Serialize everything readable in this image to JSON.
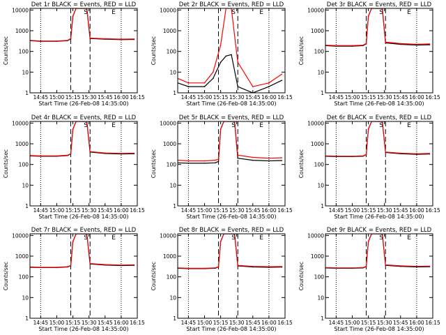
{
  "xlabel": "Start Time (26-Feb-08 14:35:00)",
  "ylabel": "Counts/sec",
  "colors": {
    "events": "#000000",
    "lld": "#ff0000"
  },
  "x_ticks": [
    "14:45",
    "15:00",
    "15:15",
    "15:30",
    "15:45",
    "16:00",
    "16:15"
  ],
  "y_ticks": [
    "1",
    "10",
    "100",
    "1000",
    "10000"
  ],
  "legend_markers": [
    "S",
    "E"
  ],
  "chart_data": [
    {
      "type": "line",
      "title": "Det 1r BLACK = Events, RED = LLD",
      "y_scale": "log",
      "ylim": [
        1,
        12000
      ],
      "x": [
        "14:35",
        "14:45",
        "15:00",
        "15:10",
        "15:13",
        "15:15",
        "15:18",
        "15:25",
        "15:28",
        "15:31",
        "15:45",
        "16:00",
        "16:12"
      ],
      "series": [
        {
          "name": "Events",
          "values": [
            330,
            310,
            310,
            330,
            400,
            5000,
            12000,
            12000,
            12000,
            420,
            390,
            370,
            380
          ]
        },
        {
          "name": "LLD",
          "values": [
            340,
            320,
            320,
            340,
            420,
            5200,
            12000,
            12000,
            12000,
            440,
            410,
            390,
            400
          ]
        }
      ]
    },
    {
      "type": "line",
      "title": "Det 2r BLACK = Events, RED = LLD",
      "y_scale": "log",
      "ylim": [
        1,
        12000
      ],
      "x": [
        "14:35",
        "14:45",
        "15:00",
        "15:08",
        "15:15",
        "15:20",
        "15:25",
        "15:31",
        "15:45",
        "16:00",
        "16:12"
      ],
      "series": [
        {
          "name": "Events",
          "values": [
            3,
            2,
            2,
            5,
            30,
            60,
            70,
            2,
            1,
            2,
            4
          ]
        },
        {
          "name": "LLD",
          "values": [
            5,
            3,
            3,
            10,
            200,
            12000,
            12000,
            30,
            2,
            3,
            8
          ]
        }
      ]
    },
    {
      "type": "line",
      "title": "Det 3r BLACK = Events, RED = LLD",
      "y_scale": "log",
      "ylim": [
        1,
        12000
      ],
      "x": [
        "14:35",
        "14:45",
        "15:00",
        "15:10",
        "15:13",
        "15:15",
        "15:18",
        "15:25",
        "15:28",
        "15:31",
        "15:45",
        "16:00",
        "16:12"
      ],
      "series": [
        {
          "name": "Events",
          "values": [
            190,
            180,
            180,
            190,
            230,
            5000,
            12000,
            12000,
            12000,
            260,
            220,
            200,
            210
          ]
        },
        {
          "name": "LLD",
          "values": [
            200,
            190,
            190,
            200,
            240,
            5200,
            12000,
            12000,
            12000,
            280,
            240,
            220,
            230
          ]
        }
      ]
    },
    {
      "type": "line",
      "title": "Det 4r BLACK = Events, RED = LLD",
      "y_scale": "log",
      "ylim": [
        1,
        12000
      ],
      "x": [
        "14:35",
        "14:45",
        "15:00",
        "15:10",
        "15:13",
        "15:15",
        "15:18",
        "15:25",
        "15:28",
        "15:31",
        "15:45",
        "16:00",
        "16:12"
      ],
      "series": [
        {
          "name": "Events",
          "values": [
            260,
            250,
            250,
            270,
            320,
            5000,
            12000,
            12000,
            12000,
            400,
            340,
            320,
            330
          ]
        },
        {
          "name": "LLD",
          "values": [
            270,
            260,
            260,
            280,
            330,
            5200,
            12000,
            12000,
            12000,
            420,
            360,
            340,
            350
          ]
        }
      ]
    },
    {
      "type": "line",
      "title": "Det 5r BLACK = Events, RED = LLD",
      "y_scale": "log",
      "ylim": [
        1,
        12000
      ],
      "x": [
        "14:35",
        "14:45",
        "15:00",
        "15:10",
        "15:13",
        "15:15",
        "15:18",
        "15:25",
        "15:28",
        "15:31",
        "15:45",
        "16:00",
        "16:12"
      ],
      "series": [
        {
          "name": "Events",
          "values": [
            120,
            115,
            115,
            120,
            140,
            5000,
            12000,
            12000,
            12000,
            200,
            160,
            150,
            155
          ]
        },
        {
          "name": "LLD",
          "values": [
            160,
            150,
            150,
            160,
            180,
            5200,
            12000,
            12000,
            12000,
            280,
            220,
            200,
            210
          ]
        }
      ]
    },
    {
      "type": "line",
      "title": "Det 6r BLACK = Events, RED = LLD",
      "y_scale": "log",
      "ylim": [
        1,
        12000
      ],
      "x": [
        "14:35",
        "14:45",
        "15:00",
        "15:10",
        "15:13",
        "15:15",
        "15:18",
        "15:25",
        "15:28",
        "15:31",
        "15:45",
        "16:00",
        "16:12"
      ],
      "series": [
        {
          "name": "Events",
          "values": [
            250,
            240,
            240,
            250,
            300,
            5000,
            12000,
            12000,
            12000,
            380,
            330,
            310,
            320
          ]
        },
        {
          "name": "LLD",
          "values": [
            260,
            250,
            250,
            260,
            310,
            5200,
            12000,
            12000,
            12000,
            400,
            350,
            330,
            340
          ]
        }
      ]
    },
    {
      "type": "line",
      "title": "Det 7r BLACK = Events, RED = LLD",
      "y_scale": "log",
      "ylim": [
        1,
        12000
      ],
      "x": [
        "14:35",
        "14:45",
        "15:00",
        "15:10",
        "15:13",
        "15:15",
        "15:18",
        "15:25",
        "15:28",
        "15:31",
        "15:45",
        "16:00",
        "16:12"
      ],
      "series": [
        {
          "name": "Events",
          "values": [
            290,
            280,
            280,
            300,
            340,
            5000,
            12000,
            12000,
            12000,
            420,
            370,
            350,
            360
          ]
        },
        {
          "name": "LLD",
          "values": [
            300,
            290,
            290,
            310,
            350,
            5200,
            12000,
            12000,
            12000,
            440,
            390,
            370,
            380
          ]
        }
      ]
    },
    {
      "type": "line",
      "title": "Det 8r BLACK = Events, RED = LLD",
      "y_scale": "log",
      "ylim": [
        1,
        12000
      ],
      "x": [
        "14:35",
        "14:45",
        "15:00",
        "15:10",
        "15:13",
        "15:15",
        "15:18",
        "15:25",
        "15:28",
        "15:31",
        "15:45",
        "16:00",
        "16:12"
      ],
      "series": [
        {
          "name": "Events",
          "values": [
            260,
            250,
            250,
            260,
            300,
            5000,
            12000,
            12000,
            12000,
            340,
            300,
            290,
            295
          ]
        },
        {
          "name": "LLD",
          "values": [
            270,
            260,
            260,
            270,
            310,
            5200,
            12000,
            12000,
            12000,
            360,
            320,
            310,
            315
          ]
        }
      ]
    },
    {
      "type": "line",
      "title": "Det 9r BLACK = Events, RED = LLD",
      "y_scale": "log",
      "ylim": [
        1,
        12000
      ],
      "x": [
        "14:35",
        "14:45",
        "15:00",
        "15:10",
        "15:13",
        "15:15",
        "15:18",
        "15:25",
        "15:28",
        "15:31",
        "15:45",
        "16:00",
        "16:12"
      ],
      "series": [
        {
          "name": "Events",
          "values": [
            270,
            260,
            260,
            270,
            310,
            5000,
            12000,
            12000,
            12000,
            360,
            320,
            300,
            310
          ]
        },
        {
          "name": "LLD",
          "values": [
            280,
            270,
            270,
            280,
            320,
            5200,
            12000,
            12000,
            12000,
            380,
            340,
            320,
            330
          ]
        }
      ]
    }
  ]
}
